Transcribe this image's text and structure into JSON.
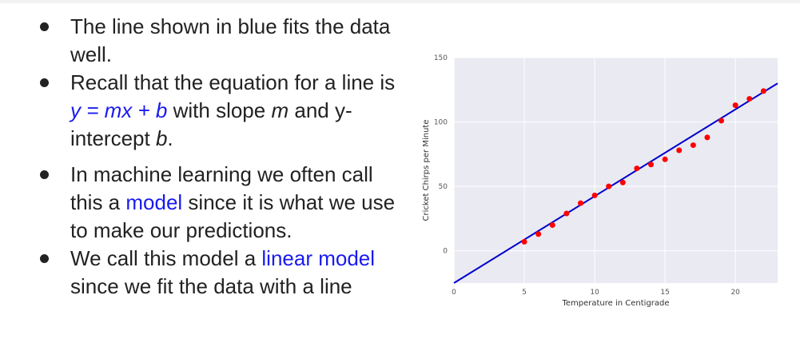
{
  "bullets": {
    "b1": "The line shown in blue fits the data well.",
    "b2_pre": "Recall that the equation for a line is ",
    "b2_eq": "y = mx + b",
    "b2_mid": " with slope ",
    "b2_m": "m",
    "b2_mid2": " and y-intercept ",
    "b2_b": "b",
    "b2_end": ".",
    "b3_pre": "In machine learning we often call this a ",
    "b3_hl": "model",
    "b3_post": " since it is what we use to make our predictions.",
    "b4_pre": "We call this model a ",
    "b4_hl": "linear model",
    "b4_post": " since we fit the data with a line"
  },
  "colors": {
    "highlight": "#1a1af0",
    "line": "#0000cc",
    "points": "#ff0000",
    "plot_bg": "#eaeaf2"
  },
  "chart_data": {
    "type": "scatter",
    "xlabel": "Temperature in Centigrade",
    "ylabel": "Cricket Chirps per Minute",
    "xlim": [
      0,
      23
    ],
    "ylim": [
      -25,
      150
    ],
    "xticks": [
      0,
      5,
      10,
      15,
      20
    ],
    "yticks": [
      0,
      50,
      100,
      150
    ],
    "grid": true,
    "points": {
      "x": [
        5,
        6,
        7,
        8,
        9,
        10,
        11,
        12,
        13,
        14,
        15,
        16,
        17,
        18,
        19,
        20,
        21,
        22
      ],
      "y": [
        7,
        13,
        20,
        29,
        37,
        43,
        50,
        53,
        64,
        67,
        71,
        78,
        82,
        88,
        101,
        113,
        118,
        124
      ]
    },
    "fit_line": {
      "x": [
        0,
        23
      ],
      "y": [
        -25,
        130
      ]
    }
  }
}
